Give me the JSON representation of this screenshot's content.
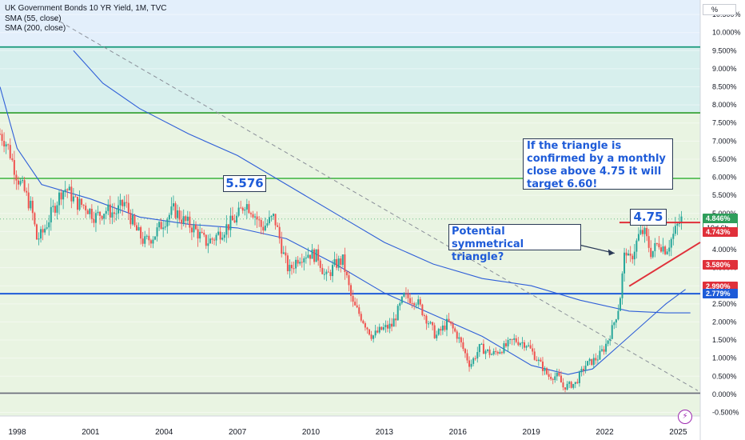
{
  "chart_data": {
    "type": "candlestick",
    "title": "UK Government Bonds 10 YR Yield, 1M, TVC",
    "indicators": [
      {
        "name": "SMA (55, close)",
        "color": "#2f5fd8"
      },
      {
        "name": "SMA (200, close)",
        "color": "#2f5fd8"
      }
    ],
    "unit": "%",
    "x_ticks": [
      "1998",
      "2001",
      "2004",
      "2007",
      "2010",
      "2013",
      "2016",
      "2019",
      "2022",
      "2025"
    ],
    "x_range": [
      1997.3,
      2025.9
    ],
    "y_ticks": [
      "-0.500%",
      "0.000%",
      "0.500%",
      "1.000%",
      "1.500%",
      "2.000%",
      "2.500%",
      "3.000%",
      "3.500%",
      "4.000%",
      "4.500%",
      "5.000%",
      "5.500%",
      "6.000%",
      "6.500%",
      "7.000%",
      "7.500%",
      "8.000%",
      "8.500%",
      "9.000%",
      "9.500%",
      "10.000%",
      "10.500%"
    ],
    "ylim": [
      -0.6,
      10.9
    ],
    "grid": true,
    "price_series": [
      [
        1997.3,
        7.2
      ],
      [
        1997.6,
        6.9
      ],
      [
        1998.0,
        6.0
      ],
      [
        1998.3,
        5.6
      ],
      [
        1998.6,
        5.1
      ],
      [
        1998.8,
        4.3
      ],
      [
        1999.0,
        4.4
      ],
      [
        1999.4,
        5.0
      ],
      [
        1999.8,
        5.6
      ],
      [
        2000.0,
        5.7
      ],
      [
        2000.4,
        5.3
      ],
      [
        2000.8,
        5.2
      ],
      [
        2001.2,
        4.9
      ],
      [
        2001.6,
        5.1
      ],
      [
        2002.0,
        5.0
      ],
      [
        2002.4,
        5.3
      ],
      [
        2002.8,
        4.6
      ],
      [
        2003.2,
        4.2
      ],
      [
        2003.6,
        4.4
      ],
      [
        2004.0,
        4.8
      ],
      [
        2004.4,
        5.1
      ],
      [
        2004.8,
        4.8
      ],
      [
        2005.2,
        4.6
      ],
      [
        2005.7,
        4.2
      ],
      [
        2006.0,
        4.3
      ],
      [
        2006.5,
        4.6
      ],
      [
        2007.0,
        4.9
      ],
      [
        2007.3,
        5.3
      ],
      [
        2007.6,
        5.1
      ],
      [
        2008.0,
        4.6
      ],
      [
        2008.5,
        4.9
      ],
      [
        2008.9,
        3.8
      ],
      [
        2009.1,
        3.4
      ],
      [
        2009.5,
        3.8
      ],
      [
        2009.9,
        3.9
      ],
      [
        2010.3,
        3.8
      ],
      [
        2010.6,
        3.2
      ],
      [
        2011.0,
        3.6
      ],
      [
        2011.3,
        3.7
      ],
      [
        2011.7,
        2.5
      ],
      [
        2012.0,
        2.2
      ],
      [
        2012.5,
        1.6
      ],
      [
        2012.9,
        1.8
      ],
      [
        2013.3,
        1.9
      ],
      [
        2013.8,
        2.7
      ],
      [
        2014.3,
        2.6
      ],
      [
        2014.8,
        2.0
      ],
      [
        2015.1,
        1.6
      ],
      [
        2015.6,
        2.0
      ],
      [
        2016.0,
        1.6
      ],
      [
        2016.5,
        0.8
      ],
      [
        2016.9,
        1.3
      ],
      [
        2017.4,
        1.1
      ],
      [
        2017.9,
        1.3
      ],
      [
        2018.3,
        1.5
      ],
      [
        2018.8,
        1.4
      ],
      [
        2019.3,
        0.9
      ],
      [
        2019.7,
        0.5
      ],
      [
        2020.1,
        0.5
      ],
      [
        2020.3,
        0.2
      ],
      [
        2020.8,
        0.3
      ],
      [
        2021.2,
        0.8
      ],
      [
        2021.7,
        1.0
      ],
      [
        2022.0,
        1.3
      ],
      [
        2022.3,
        1.8
      ],
      [
        2022.6,
        2.5
      ],
      [
        2022.75,
        3.5
      ],
      [
        2022.85,
        4.1
      ],
      [
        2023.0,
        3.6
      ],
      [
        2023.4,
        4.4
      ],
      [
        2023.6,
        4.5
      ],
      [
        2023.9,
        3.9
      ],
      [
        2024.2,
        4.2
      ],
      [
        2024.5,
        4.0
      ],
      [
        2024.8,
        4.4
      ],
      [
        2025.0,
        4.7
      ],
      [
        2025.15,
        4.846
      ]
    ],
    "sma_55": [
      [
        2000.3,
        9.5
      ],
      [
        2001.5,
        8.6
      ],
      [
        2003.0,
        7.9
      ],
      [
        2005.0,
        7.2
      ],
      [
        2007.0,
        6.6
      ],
      [
        2009.0,
        5.8
      ],
      [
        2011.0,
        5.0
      ],
      [
        2013.0,
        4.2
      ],
      [
        2015.0,
        3.6
      ],
      [
        2017.0,
        3.2
      ],
      [
        2019.0,
        3.0
      ],
      [
        2021.0,
        2.6
      ],
      [
        2023.0,
        2.3
      ],
      [
        2024.5,
        2.25
      ],
      [
        2025.5,
        2.25
      ]
    ],
    "sma_200": [
      [
        1997.3,
        8.5
      ],
      [
        1998.0,
        6.8
      ],
      [
        1999.0,
        5.8
      ],
      [
        2001.0,
        5.4
      ],
      [
        2003.0,
        4.9
      ],
      [
        2005.0,
        4.7
      ],
      [
        2007.0,
        4.6
      ],
      [
        2009.0,
        4.3
      ],
      [
        2011.0,
        3.6
      ],
      [
        2013.0,
        2.8
      ],
      [
        2015.0,
        2.2
      ],
      [
        2017.0,
        1.6
      ],
      [
        2019.0,
        0.8
      ],
      [
        2020.5,
        0.55
      ],
      [
        2021.5,
        0.7
      ],
      [
        2022.5,
        1.3
      ],
      [
        2023.5,
        1.9
      ],
      [
        2024.5,
        2.5
      ],
      [
        2025.3,
        2.9
      ]
    ],
    "horizontal_levels": [
      {
        "value": 9.6,
        "color": "#16987a"
      },
      {
        "value": 7.78,
        "color": "#43a843"
      },
      {
        "value": 5.97,
        "color": "#5cc05c"
      },
      {
        "value": 2.78,
        "color": "#1e5bd8"
      },
      {
        "value": 0.03,
        "color": "#6b6f7a"
      }
    ],
    "zones": [
      {
        "from": 9.6,
        "to": 10.9,
        "color": "#e3effb"
      },
      {
        "from": 7.78,
        "to": 9.6,
        "color": "#d7efed"
      },
      {
        "from": -0.6,
        "to": 7.78,
        "color": "#e9f4e2"
      }
    ],
    "trend_line": {
      "from": [
        1999.5,
        10.4
      ],
      "to": [
        2025.8,
        0.1
      ],
      "color": "#8a8f99"
    },
    "triangle_upper": {
      "from": [
        2022.6,
        4.75
      ],
      "to": [
        2025.9,
        4.75
      ],
      "color": "#e0303a"
    },
    "triangle_lower": {
      "from": [
        2023.0,
        2.99
      ],
      "to": [
        2025.9,
        4.2
      ],
      "color": "#e0303a"
    },
    "current_price_line": 4.846,
    "annotations": [
      {
        "text": "5.576",
        "x": 2007.4,
        "y": 5.8
      },
      {
        "text": "4.75",
        "x": 2023.8,
        "y": 5.05
      },
      {
        "text": "Potential symmetrical triangle?",
        "x": 2020.2,
        "y": 4.45,
        "arrow_to": [
          2022.4,
          3.9
        ]
      },
      {
        "text": "If the triangle is confirmed by a monthly close above 4.75 it will target 6.60!",
        "x": 2023.3,
        "y": 6.6
      }
    ],
    "price_labels": [
      {
        "value": 4.846,
        "text": "4.846%",
        "sub": "19d 6h",
        "color": "#2e9e5b"
      },
      {
        "value": 4.743,
        "text": "4.743%",
        "color": "#e0303a"
      },
      {
        "value": 3.58,
        "text": "3.580%",
        "color": "#e0303a"
      },
      {
        "value": 2.99,
        "text": "2.990%",
        "color": "#e0303a"
      },
      {
        "value": 2.779,
        "text": "2.779%",
        "color": "#1e5bd8"
      }
    ]
  }
}
